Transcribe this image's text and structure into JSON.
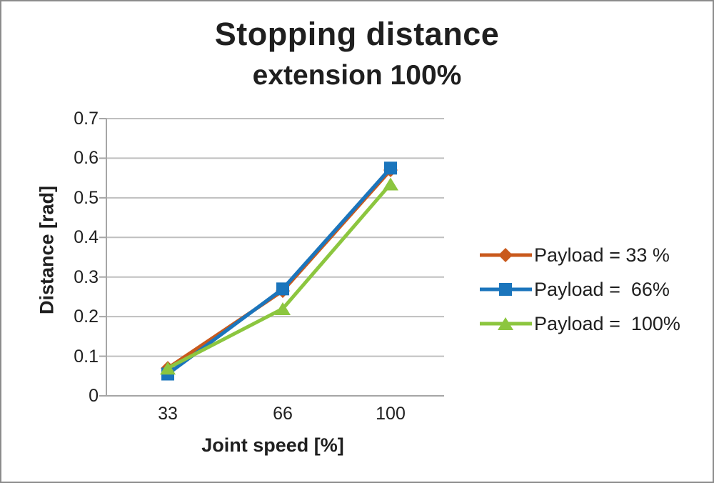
{
  "palette": {
    "background": "#FFFFFF",
    "frame_border": "#8C8C8C",
    "grid_line": "#BFBFBF",
    "axis_line": "#A6A6A6",
    "text": "#1F1F1F"
  },
  "chart_data": {
    "type": "line",
    "title": "Stopping distance",
    "subtitle": "extension 100%",
    "xlabel": "Joint speed [%]",
    "ylabel": "Distance [rad]",
    "x_categories": [
      "33",
      "66",
      "100"
    ],
    "x_values": [
      33,
      66,
      100
    ],
    "y_ticks": [
      0,
      0.1,
      0.2,
      0.3,
      0.4,
      0.5,
      0.6,
      0.7
    ],
    "ylim": [
      0,
      0.7
    ],
    "grid": true,
    "legend_position": "right",
    "series": [
      {
        "name": "Payload = 33 %",
        "marker": "diamond",
        "color": "#C9591C",
        "values": [
          0.07,
          0.265,
          0.57
        ]
      },
      {
        "name": "Payload =  66%",
        "marker": "square",
        "color": "#1B75BC",
        "values": [
          0.055,
          0.27,
          0.575
        ]
      },
      {
        "name": "Payload =  100%",
        "marker": "triangle",
        "color": "#8CC63F",
        "values": [
          0.07,
          0.22,
          0.535
        ]
      }
    ]
  }
}
